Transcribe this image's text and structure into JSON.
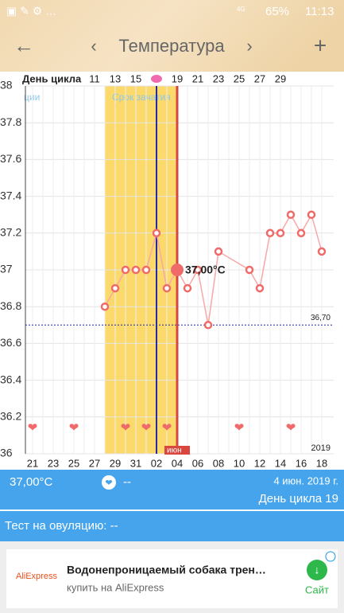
{
  "status_bar": {
    "network": "4G",
    "battery": "65%",
    "time": "11:13"
  },
  "header": {
    "title": "Температура"
  },
  "chart_data": {
    "type": "line",
    "cycle_axis_title": "День цикла",
    "categories": [
      "21",
      null,
      "23",
      null,
      "25",
      null,
      "27",
      null,
      "29",
      null,
      "31",
      null,
      "02",
      null,
      "04",
      null,
      "06",
      null,
      "08",
      null,
      "10",
      null,
      "12",
      null,
      "14",
      null,
      "16",
      null,
      "18"
    ],
    "cycle_labels": [
      null,
      null,
      null,
      null,
      null,
      null,
      "11",
      null,
      "13",
      null,
      "15",
      null,
      null,
      null,
      "19",
      null,
      "21",
      null,
      "23",
      null,
      "25",
      null,
      "27",
      null,
      "29",
      null,
      null,
      null,
      null
    ],
    "series": [
      {
        "color": "#f06a6a",
        "values": [
          null,
          null,
          null,
          null,
          null,
          null,
          null,
          36.8,
          36.9,
          37.0,
          37.0,
          37.0,
          37.2,
          36.9,
          37.0,
          36.9,
          37.0,
          36.7,
          37.1,
          null,
          null,
          37.0,
          36.9,
          37.2,
          37.2,
          37.3,
          37.2,
          37.3,
          37.1
        ]
      }
    ],
    "ylim": [
      36,
      38
    ],
    "yticks": [
      36,
      36.2,
      36.4,
      36.6,
      36.8,
      37,
      37.2,
      37.4,
      37.6,
      37.8,
      38
    ],
    "coverline": 36.7,
    "coverline_label": "36,70",
    "fertile_window": [
      7,
      14
    ],
    "fertile_label": "Срок зачатия",
    "ovulation_index": 12,
    "ovulation_label": "ции",
    "selected_index": 14,
    "selected_label": "37,00°C",
    "intercourse_indices": [
      0,
      4,
      9,
      11,
      13,
      20,
      25
    ],
    "month_label": "июн",
    "year_label": "2019"
  },
  "info": {
    "temperature": "37,00°C",
    "mark": "--",
    "date": "4 июн. 2019 г.",
    "cycle_day": "День цикла 19"
  },
  "test": {
    "label": "Тест на овуляцию: --"
  },
  "ad": {
    "brand": "AliExpress",
    "title": "Водонепроницаемый собака трен…",
    "subtitle": "купить на AliExpress",
    "action": "Сайт"
  }
}
